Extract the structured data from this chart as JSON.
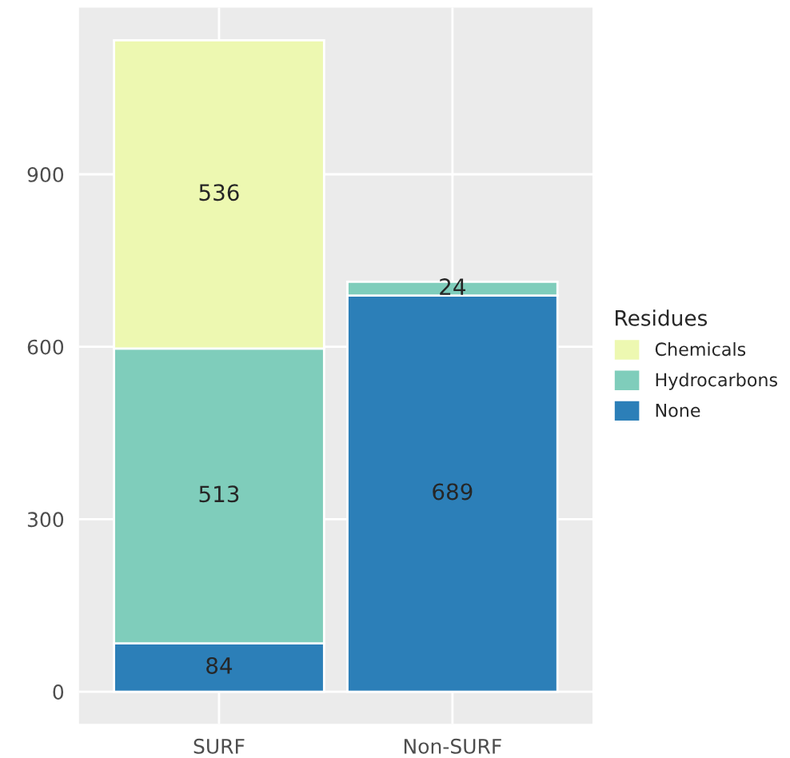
{
  "chart_data": {
    "type": "bar",
    "stacked": true,
    "categories": [
      "SURF",
      "Non-SURF"
    ],
    "series": [
      {
        "name": "None",
        "color": "#2c7fb8",
        "values": [
          84,
          689
        ]
      },
      {
        "name": "Hydrocarbons",
        "color": "#7fcdbb",
        "values": [
          513,
          24
        ]
      },
      {
        "name": "Chemicals",
        "color": "#edf8b1",
        "values": [
          536,
          null
        ]
      }
    ],
    "legend_title": "Residues",
    "legend": "right",
    "data_labels": true,
    "grid": true,
    "ylim": [
      -56,
      1190
    ],
    "yticks": [
      0,
      300,
      600,
      900
    ]
  }
}
